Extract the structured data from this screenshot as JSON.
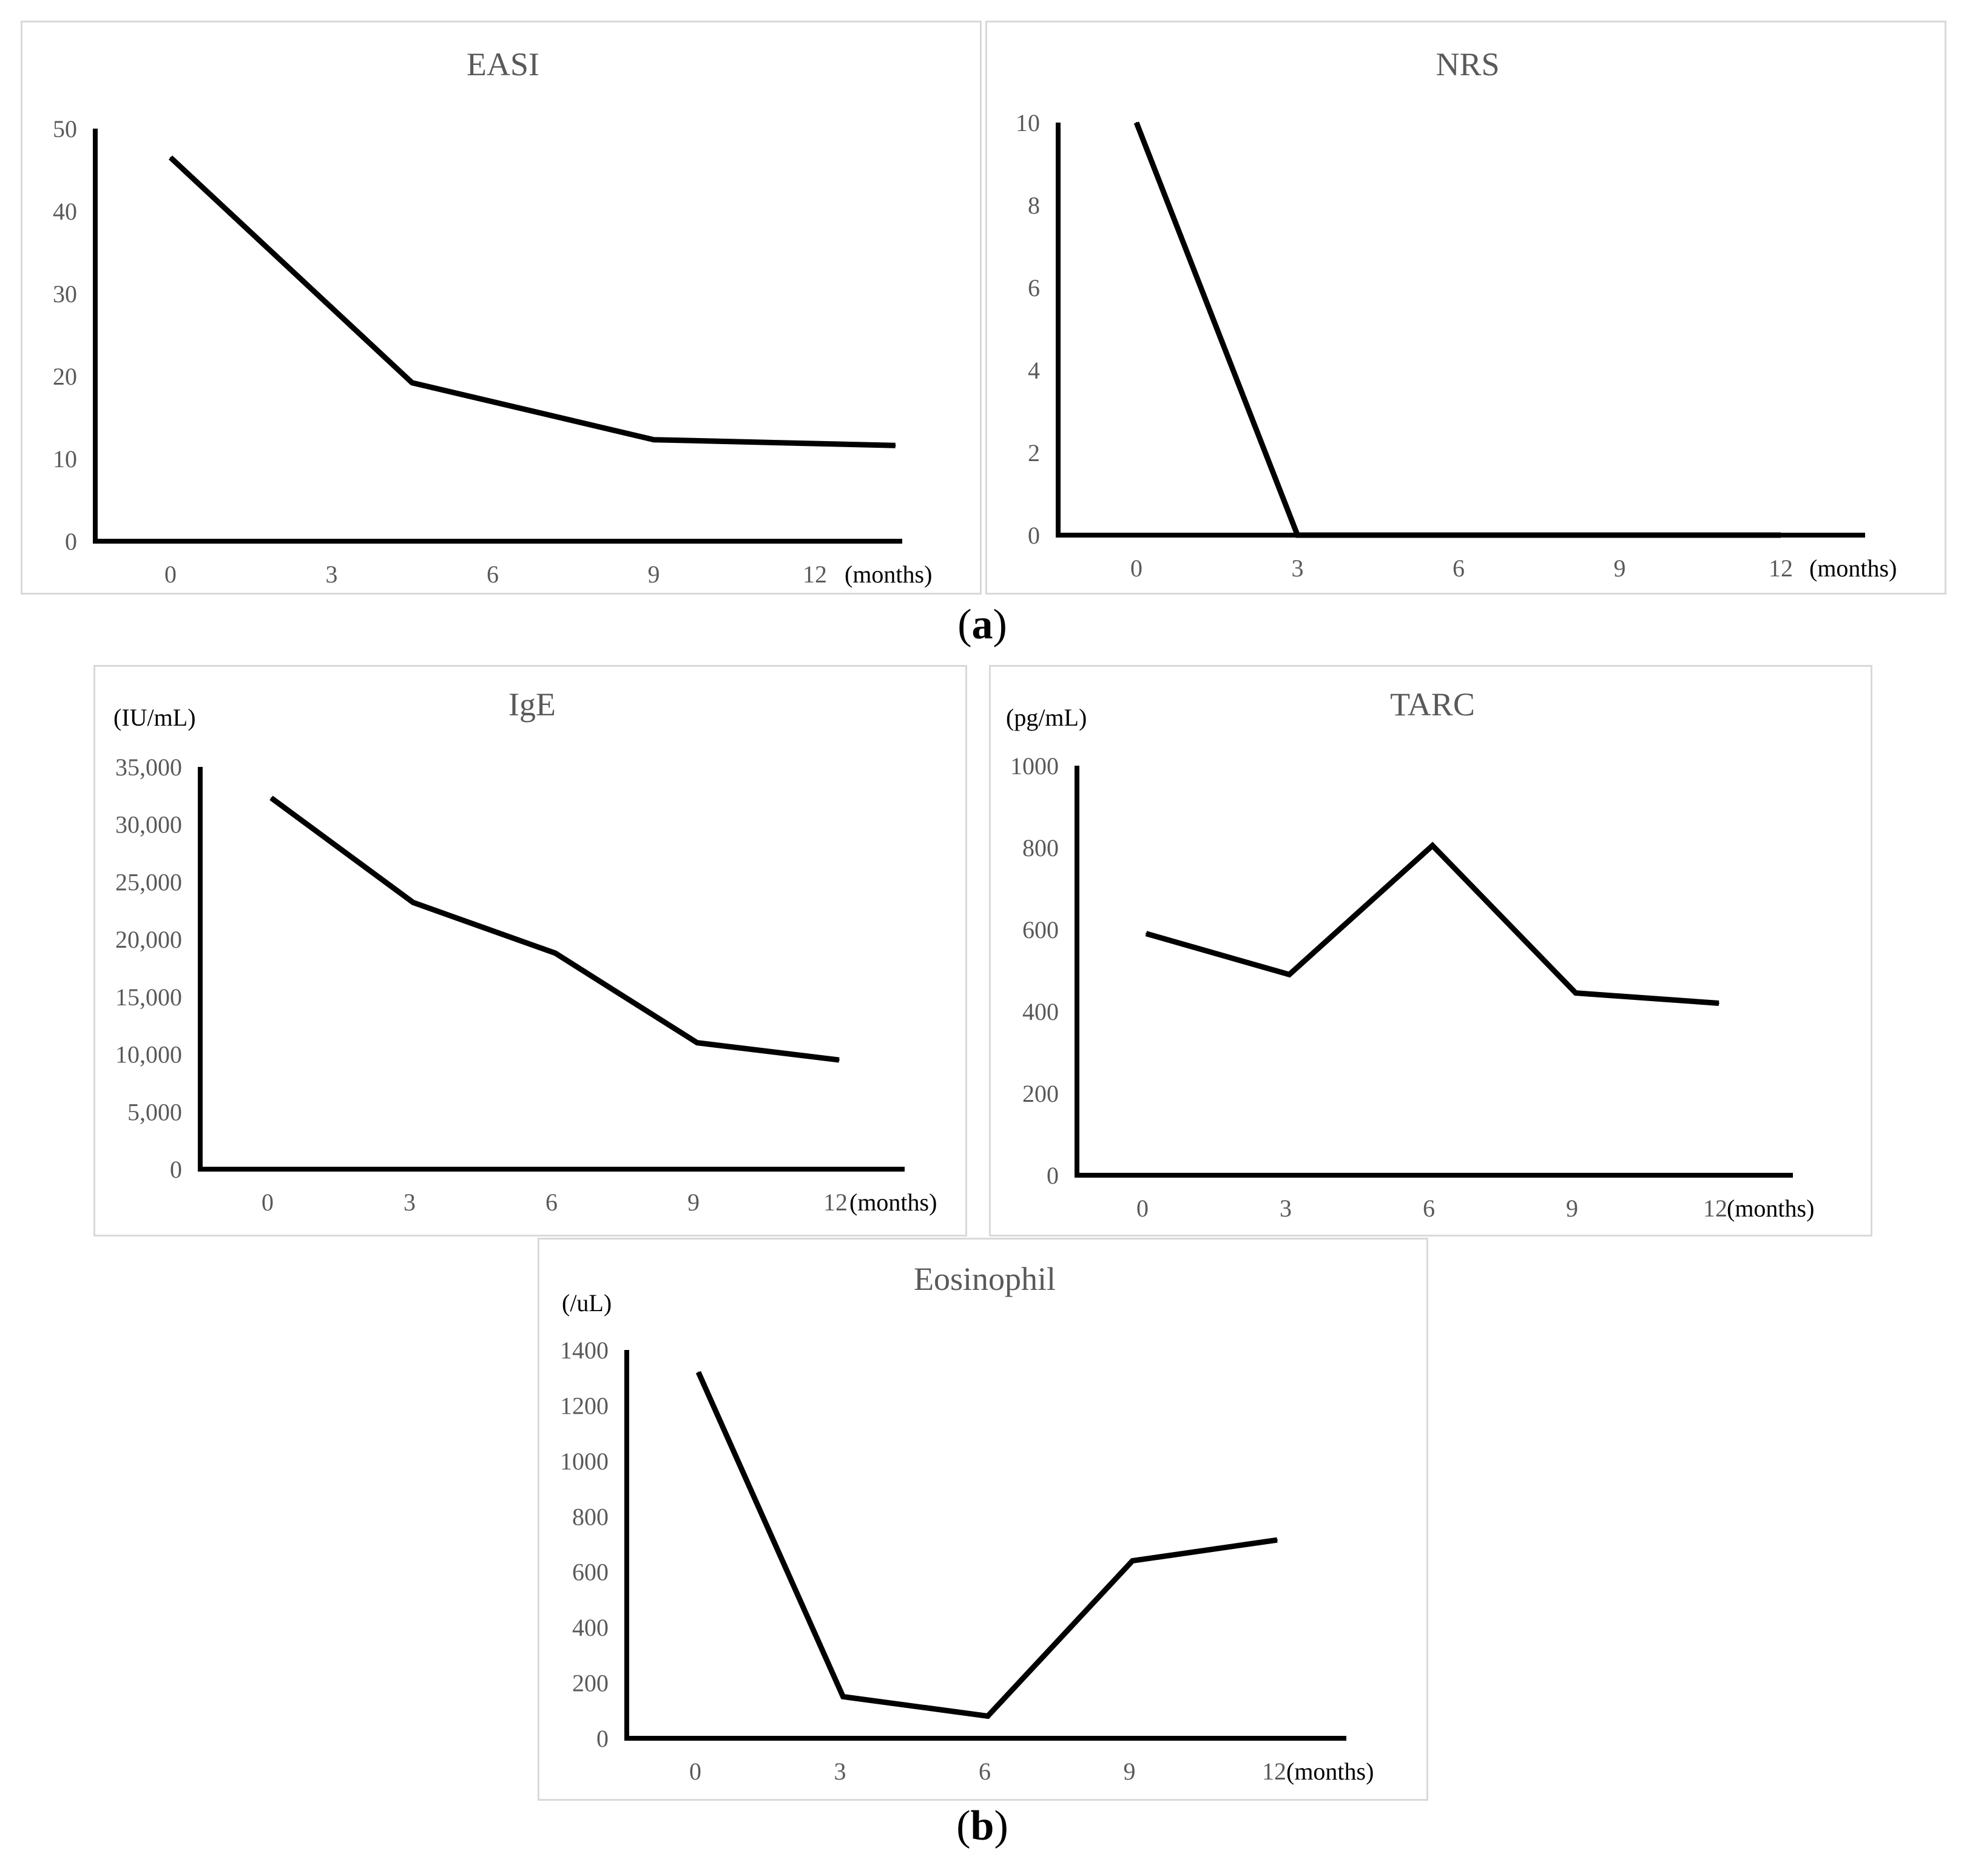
{
  "figure_labels": {
    "a": "a",
    "b": "b"
  },
  "chart_data": [
    {
      "id": "easi",
      "type": "line",
      "title": "EASI",
      "unit": "",
      "x_unit": "(months)",
      "categories": [
        "0",
        "3",
        "6",
        "9",
        "12"
      ],
      "x": [
        0,
        3,
        6,
        9,
        12
      ],
      "yticks": [
        "0",
        "10",
        "20",
        "30",
        "40",
        "50"
      ],
      "ylim": [
        0,
        50
      ],
      "series": [
        {
          "name": "EASI",
          "x": [
            0,
            1.5,
            3,
            4.5
          ],
          "values": [
            46.5,
            19.2,
            12.3,
            11.6
          ]
        }
      ]
    },
    {
      "id": "nrs",
      "type": "line",
      "title": "NRS",
      "unit": "",
      "x_unit": "(months)",
      "categories": [
        "0",
        "3",
        "6",
        "9",
        "12"
      ],
      "x": [
        0,
        3,
        6,
        9,
        12
      ],
      "yticks": [
        "0",
        "2",
        "4",
        "6",
        "8",
        "10"
      ],
      "ylim": [
        0,
        10
      ],
      "series": [
        {
          "name": "NRS",
          "x": [
            0,
            1,
            4
          ],
          "values": [
            10,
            0,
            0
          ]
        }
      ]
    },
    {
      "id": "ige",
      "type": "line",
      "title": "IgE",
      "unit": "(IU/mL)",
      "x_unit": "(months)",
      "categories": [
        "0",
        "3",
        "6",
        "9",
        "12"
      ],
      "x": [
        0,
        3,
        6,
        9,
        12
      ],
      "yticks": [
        "0",
        "5,000",
        "10,000",
        "15,000",
        "20,000",
        "25,000",
        "30,000",
        "35,000"
      ],
      "ylim": [
        0,
        35000
      ],
      "series": [
        {
          "name": "IgE",
          "x": [
            0,
            1,
            2,
            3,
            4
          ],
          "values": [
            32300,
            23200,
            18800,
            11000,
            9500
          ]
        }
      ]
    },
    {
      "id": "tarc",
      "type": "line",
      "title": "TARC",
      "unit": "(pg/mL)",
      "x_unit": "(months)",
      "categories": [
        "0",
        "3",
        "6",
        "9",
        "12"
      ],
      "x": [
        0,
        3,
        6,
        9,
        12
      ],
      "yticks": [
        "0",
        "200",
        "400",
        "600",
        "800",
        "1000"
      ],
      "ylim": [
        0,
        1000
      ],
      "series": [
        {
          "name": "TARC",
          "x": [
            0,
            1,
            2,
            3,
            4
          ],
          "values": [
            590,
            490,
            805,
            445,
            420
          ]
        }
      ]
    },
    {
      "id": "eosinophil",
      "type": "line",
      "title": "Eosinophil",
      "unit": "(/uL)",
      "x_unit": "(months)",
      "categories": [
        "0",
        "3",
        "6",
        "9",
        "12"
      ],
      "x": [
        0,
        3,
        6,
        9,
        12
      ],
      "yticks": [
        "0",
        "200",
        "400",
        "600",
        "800",
        "1000",
        "1200",
        "1400"
      ],
      "ylim": [
        0,
        1400
      ],
      "series": [
        {
          "name": "Eosinophil",
          "x": [
            0,
            1,
            2,
            3,
            4
          ],
          "values": [
            1320,
            150,
            80,
            640,
            715
          ]
        }
      ]
    }
  ]
}
